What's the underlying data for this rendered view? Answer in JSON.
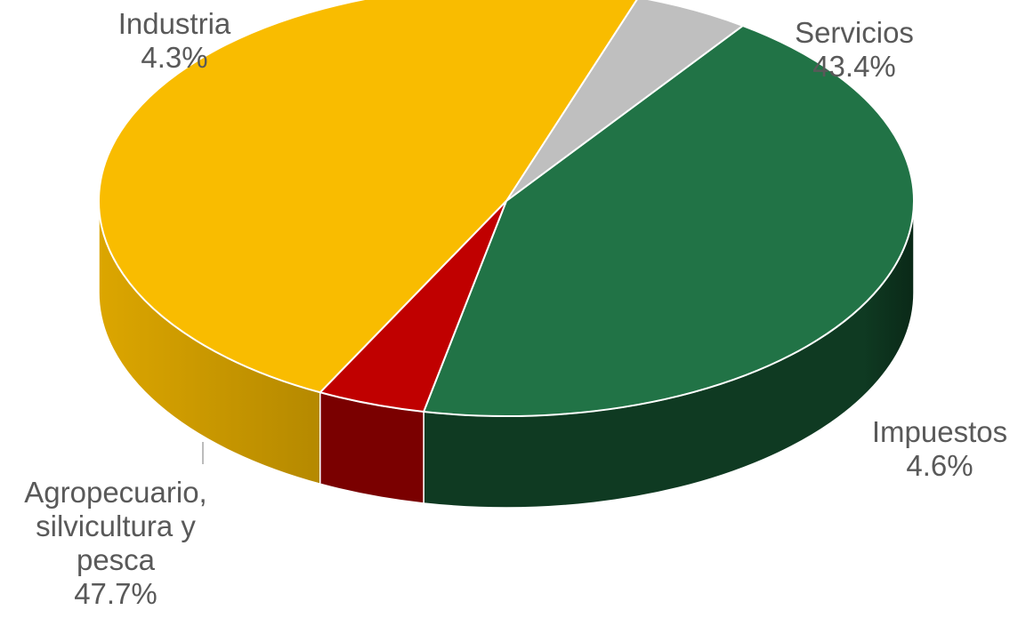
{
  "chart_data": {
    "type": "pie",
    "title": "",
    "legend": "none",
    "slices": [
      {
        "name": "Servicios",
        "value": 43.4,
        "label": "43.4%",
        "color": "#217346"
      },
      {
        "name": "Impuestos",
        "value": 4.6,
        "label": "4.6%",
        "color": "#bfbfbf"
      },
      {
        "name": "Agropecuario, silvicultura y pesca",
        "name_lines": [
          "Agropecuario,",
          "silvicultura y",
          "pesca"
        ],
        "value": 47.7,
        "label": "47.7%",
        "color": "#f9bc00"
      },
      {
        "name": "Industria",
        "value": 4.3,
        "label": "4.3%",
        "color": "#c00000"
      }
    ]
  }
}
